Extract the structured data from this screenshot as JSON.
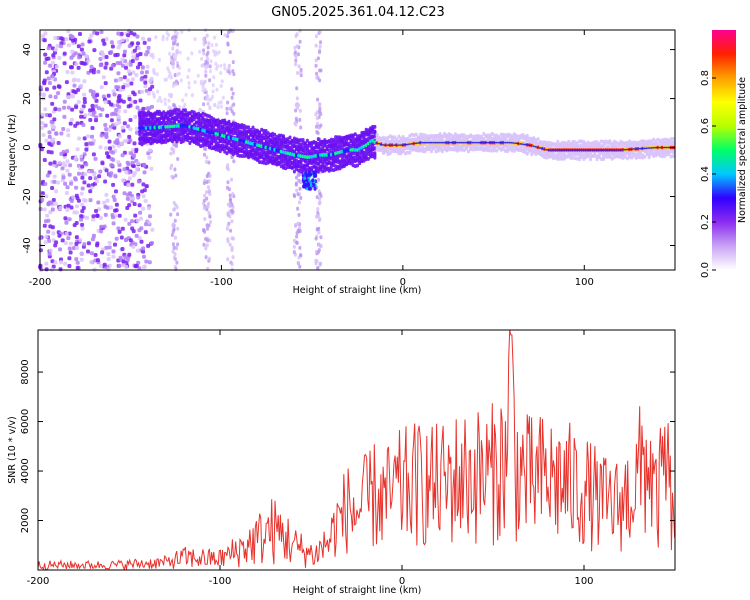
{
  "title": "GN05.2025.361.04.12.C23",
  "chart_data": [
    {
      "type": "heatmap",
      "title": "GN05.2025.361.04.12.C23",
      "xlabel": "Height of straight line (km)",
      "ylabel": "Frequency (Hz)",
      "xlim": [
        -200,
        150
      ],
      "ylim": [
        -50,
        48
      ],
      "x_ticks": [
        -200,
        -100,
        0,
        100
      ],
      "y_ticks": [
        -40,
        -20,
        0,
        20,
        40
      ],
      "ridge": {
        "description": "dominant frequency track vs height",
        "x": [
          -140,
          -120,
          -110,
          -100,
          -90,
          -80,
          -70,
          -60,
          -52,
          -45,
          -40,
          -35,
          -30,
          -25,
          -20,
          -17,
          -15,
          -10,
          0,
          10,
          20,
          30,
          40,
          50,
          60,
          70,
          80,
          100,
          120,
          140,
          150
        ],
        "y": [
          8,
          9,
          7,
          5,
          3,
          1,
          -1,
          -3,
          -4,
          -3,
          -3,
          -2,
          -1,
          -1,
          1,
          3,
          2,
          1,
          1,
          2,
          2,
          2,
          2,
          2,
          2,
          1,
          -1,
          -1,
          -1,
          0,
          0
        ],
        "secondary_blob": {
          "x": [
            -55,
            -48
          ],
          "y": [
            -17,
            -10
          ]
        }
      },
      "colorbar": {
        "label": "Normalized spectral amplitude",
        "range": [
          0,
          1
        ],
        "ticks": [
          0.0,
          0.2,
          0.4,
          0.6,
          0.8
        ],
        "tick_labels": [
          "0.0",
          "0.2",
          "0.4",
          "0.6",
          "0.8"
        ],
        "colors": [
          "#ffffff",
          "#c9a3f5",
          "#8b2cf0",
          "#3000ff",
          "#00c8ff",
          "#00ff66",
          "#b8ff00",
          "#ffff00",
          "#ffa000",
          "#ff2000",
          "#ff0090"
        ]
      }
    },
    {
      "type": "line",
      "title": "",
      "xlabel": "Height of straight line (km)",
      "ylabel": "SNR (10 * v/v)",
      "xlim": [
        -200,
        150
      ],
      "ylim": [
        0,
        9700
      ],
      "x_ticks": [
        -200,
        -100,
        0,
        100
      ],
      "y_ticks": [
        2000,
        4000,
        6000,
        8000
      ],
      "color": "#e8322c",
      "series": [
        {
          "name": "SNR",
          "description": "approximate envelope of the noisy SNR trace",
          "x": [
            -200,
            -160,
            -130,
            -120,
            -100,
            -90,
            -80,
            -72,
            -65,
            -58,
            -48,
            -40,
            -35,
            -30,
            -25,
            -20,
            -15,
            -10,
            -5,
            0,
            10,
            20,
            30,
            40,
            50,
            58,
            60,
            62,
            70,
            80,
            90,
            100,
            110,
            120,
            128,
            135,
            140,
            145,
            150
          ],
          "y": [
            200,
            200,
            300,
            500,
            450,
            800,
            1200,
            1600,
            1400,
            900,
            600,
            1200,
            2000,
            2500,
            2300,
            2700,
            3000,
            2800,
            3100,
            3300,
            3500,
            3400,
            3700,
            3800,
            3900,
            4500,
            9500,
            4200,
            3600,
            3700,
            3500,
            3200,
            2700,
            2600,
            3400,
            4600,
            2500,
            4500,
            1000
          ],
          "peak": {
            "x": 60,
            "y": 9500
          }
        }
      ]
    }
  ]
}
